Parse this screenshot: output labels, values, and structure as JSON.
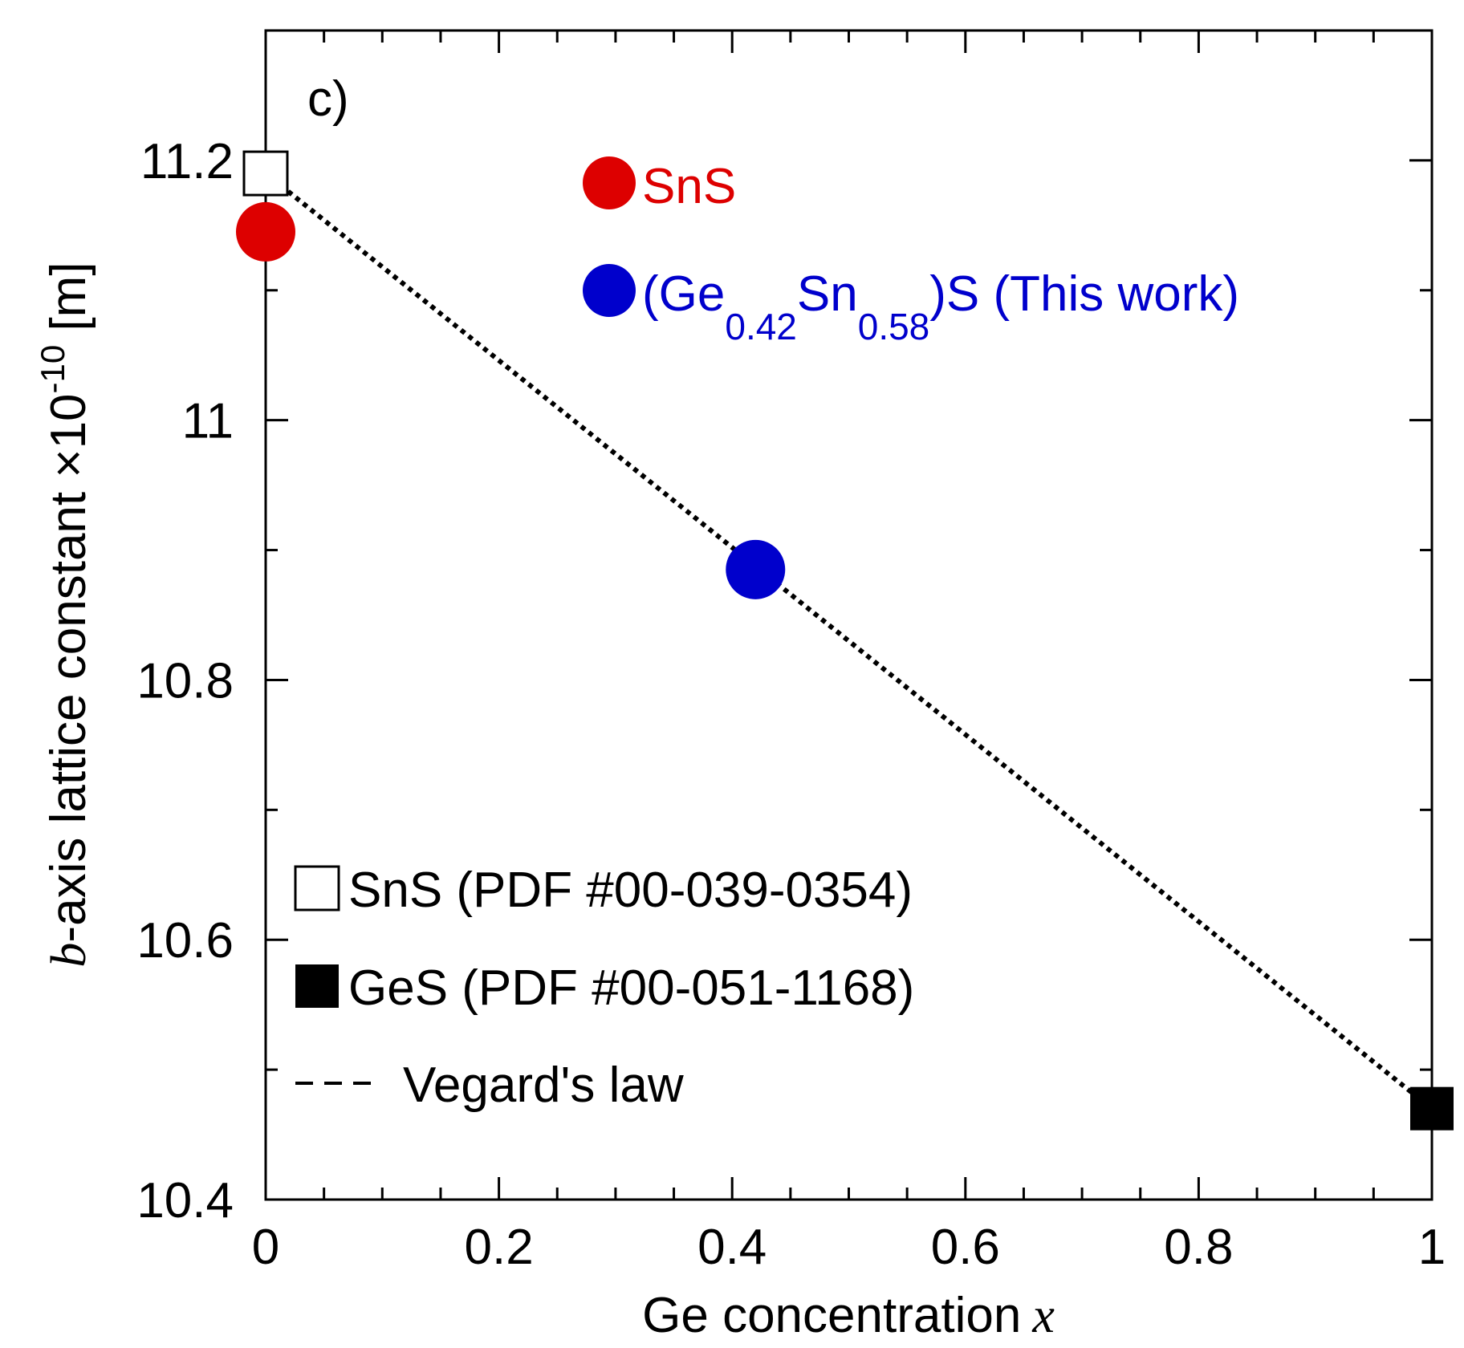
{
  "chart_data": {
    "type": "scatter",
    "panel_label": "c)",
    "xlabel": "Ge concentration",
    "xlabel_var": "x",
    "ylabel_var": "b",
    "ylabel_main": "-axis lattice constant  ×10",
    "ylabel_exp": "-10",
    "ylabel_unit": " [m]",
    "xlim": [
      0,
      1
    ],
    "ylim": [
      10.4,
      11.3
    ],
    "x_ticks": [
      0,
      0.2,
      0.4,
      0.6,
      0.8,
      1
    ],
    "x_tick_labels": [
      "0",
      "0.2",
      "0.4",
      "0.6",
      "0.8",
      "1"
    ],
    "x_minor_ticks": [
      0.05,
      0.1,
      0.15,
      0.25,
      0.3,
      0.35,
      0.45,
      0.5,
      0.55,
      0.65,
      0.7,
      0.75,
      0.85,
      0.9,
      0.95
    ],
    "y_ticks": [
      10.4,
      10.6,
      10.8,
      11.0,
      11.2
    ],
    "y_tick_labels": [
      "10.4",
      "10.6",
      "10.8",
      "11",
      "11.2"
    ],
    "grid": false,
    "series": [
      {
        "name": "SnS",
        "marker": "filled-circle",
        "color": "#dd0000",
        "points": [
          {
            "x": 0,
            "y": 11.145
          }
        ]
      },
      {
        "name": "(Ge0.42Sn0.58)S (This work)",
        "marker": "filled-circle",
        "color": "#0000cc",
        "points": [
          {
            "x": 0.42,
            "y": 10.885
          }
        ]
      },
      {
        "name": "SnS (PDF #00-039-0354)",
        "marker": "open-square",
        "color": "#000000",
        "points": [
          {
            "x": 0,
            "y": 11.19
          }
        ]
      },
      {
        "name": "GeS (PDF #00-051-1168)",
        "marker": "filled-square",
        "color": "#000000",
        "points": [
          {
            "x": 1,
            "y": 10.47
          }
        ]
      },
      {
        "name": "Vegard's law",
        "marker": "dotted-line",
        "color": "#000000",
        "points": [
          {
            "x": 0,
            "y": 11.19
          },
          {
            "x": 1,
            "y": 10.47
          }
        ]
      }
    ],
    "legend_top": [
      {
        "text": "SnS",
        "color": "#dd0000"
      },
      {
        "prefix": "(Ge",
        "sub1": "0.42",
        "mid": "Sn",
        "sub2": "0.58",
        "suffix": ")S (This work)",
        "color": "#0000cc"
      }
    ],
    "legend_bottom": [
      {
        "text": "SnS (PDF #00-039-0354)"
      },
      {
        "text": "GeS (PDF #00-051-1168)"
      },
      {
        "text": "Vegard's law"
      }
    ],
    "legend_placement": "top-right and bottom-left"
  }
}
